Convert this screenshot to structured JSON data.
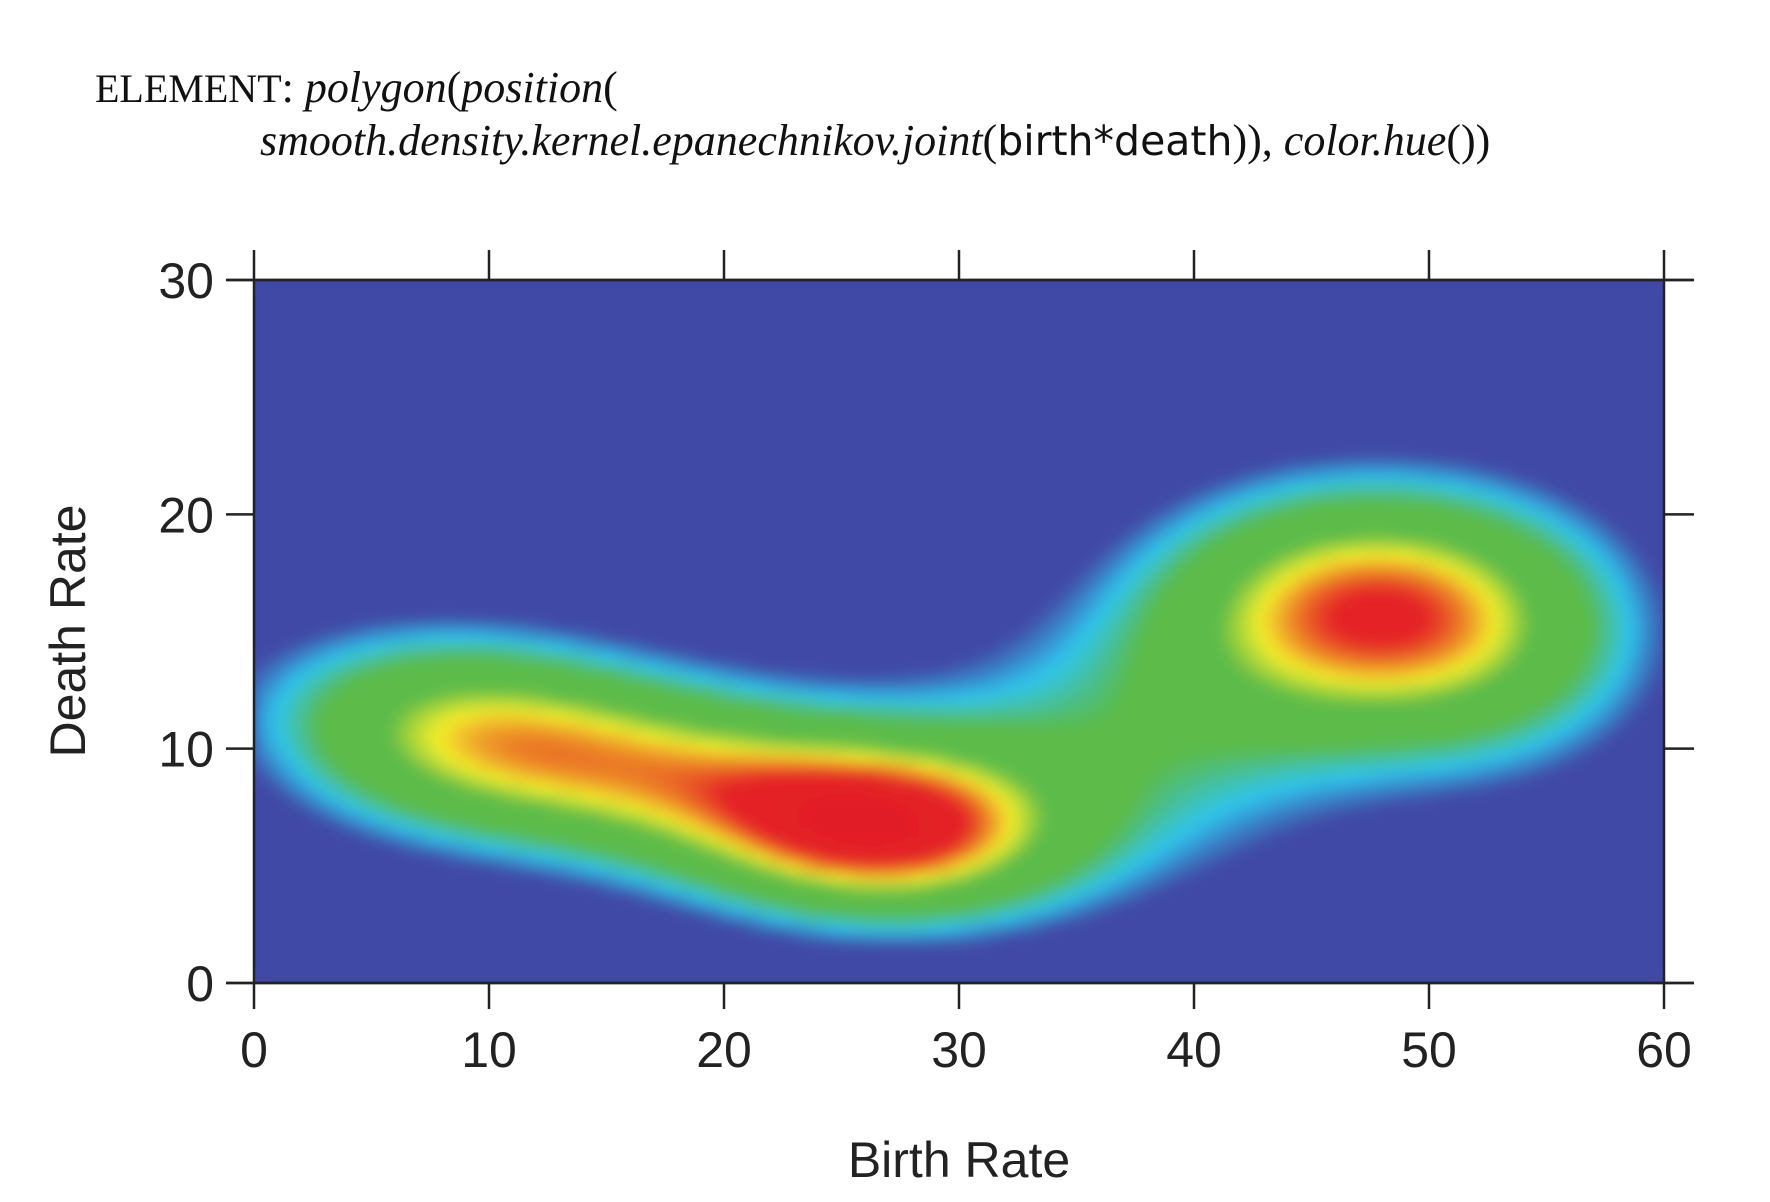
{
  "caption": {
    "element_kw": "ELEMENT",
    "colon": ":",
    "p_polygon": "polygon",
    "p_open1": "(",
    "p_position": "position",
    "p_open2": "(",
    "p_smooth": "smooth.density.kernel.epanechnikov.joint",
    "p_open3": "(",
    "p_birth": "birth",
    "p_star": "*",
    "p_death": "death",
    "p_close1": ")), ",
    "p_colorhue": "color.hue",
    "p_close2": "())"
  },
  "chart_data": {
    "type": "heatmap",
    "xlabel": "Birth Rate",
    "ylabel": "Death Rate",
    "xlim": [
      0,
      60
    ],
    "ylim": [
      0,
      30
    ],
    "xticks": [
      0,
      10,
      20,
      30,
      40,
      50,
      60
    ],
    "yticks": [
      0,
      10,
      20,
      30
    ],
    "grid": false,
    "colormap": {
      "name": "hue",
      "stops": [
        {
          "level": 0.0,
          "color": "#4149a6"
        },
        {
          "level": 0.13,
          "color": "#4149a6"
        },
        {
          "level": 0.22,
          "color": "#2fc6ef"
        },
        {
          "level": 0.33,
          "color": "#5cbb4a"
        },
        {
          "level": 0.52,
          "color": "#5cbb4a"
        },
        {
          "level": 0.64,
          "color": "#f5ef2b"
        },
        {
          "level": 0.8,
          "color": "#e52526"
        },
        {
          "level": 1.0,
          "color": "#e21d26"
        }
      ]
    },
    "density_components": [
      {
        "x": 17,
        "y": 9,
        "sx": 9,
        "sy": 3.2,
        "rho": -0.45,
        "w": 0.55
      },
      {
        "x": 27,
        "y": 6.5,
        "sx": 5,
        "sy": 2.5,
        "rho": 0,
        "w": 0.5
      },
      {
        "x": 8,
        "y": 10.5,
        "sx": 5,
        "sy": 3,
        "rho": 0,
        "w": 0.22
      },
      {
        "x": 47,
        "y": 16,
        "sx": 6,
        "sy": 3.5,
        "rho": 0,
        "w": 0.6
      },
      {
        "x": 37,
        "y": 10,
        "sx": 7,
        "sy": 4,
        "rho": 0,
        "w": 0.22
      },
      {
        "x": 53,
        "y": 14,
        "sx": 5,
        "sy": 4,
        "rho": 0,
        "w": 0.18
      }
    ]
  }
}
